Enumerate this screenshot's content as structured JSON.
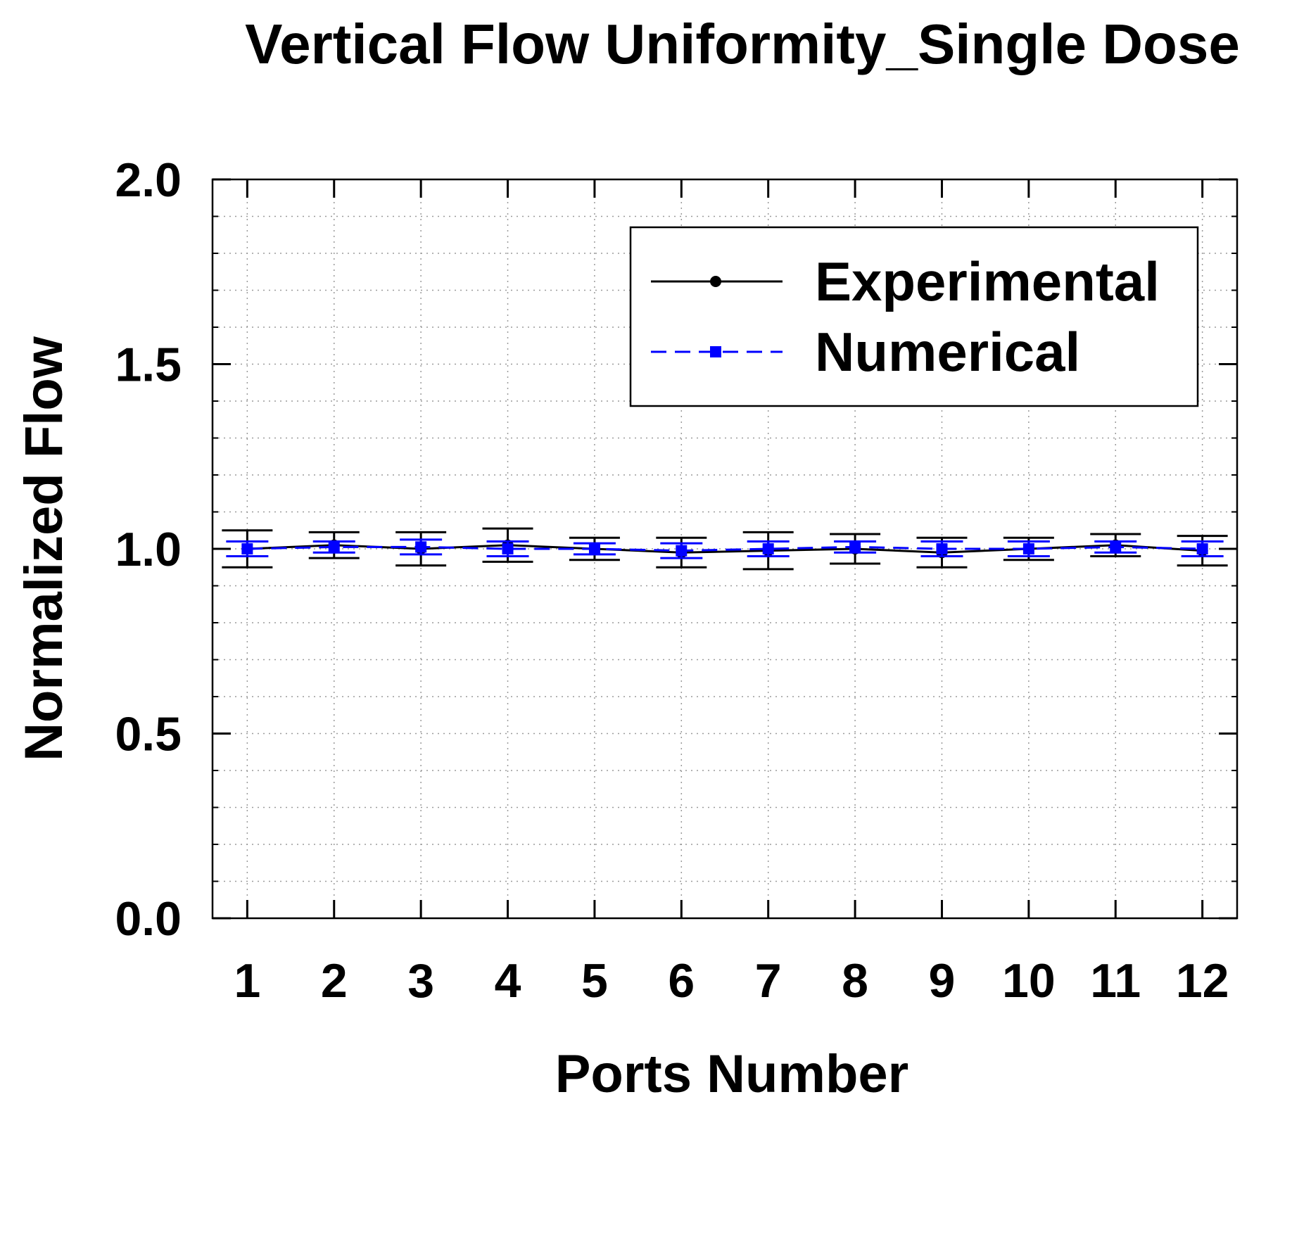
{
  "chart_data": {
    "type": "line",
    "title": "Vertical Flow Uniformity_Single Dose",
    "xlabel": "Ports Number",
    "ylabel": "Normalized Flow",
    "x": [
      1,
      2,
      3,
      4,
      5,
      6,
      7,
      8,
      9,
      10,
      11,
      12
    ],
    "x_tick_labels": [
      "1",
      "2",
      "3",
      "4",
      "5",
      "6",
      "7",
      "8",
      "9",
      "10",
      "11",
      "12"
    ],
    "xlim": [
      0.6,
      12.4
    ],
    "ylim": [
      0.0,
      2.0
    ],
    "y_ticks": [
      0.0,
      0.5,
      1.0,
      1.5,
      2.0
    ],
    "y_tick_labels": [
      "0.0",
      "0.5",
      "1.0",
      "1.5",
      "2.0"
    ],
    "grid": true,
    "legend_position": "top-right",
    "series": [
      {
        "name": "Experimental",
        "color": "#000000",
        "line_style": "solid",
        "marker": "circle",
        "values": [
          1.0,
          1.01,
          1.0,
          1.01,
          1.0,
          0.99,
          0.995,
          1.0,
          0.99,
          1.0,
          1.01,
          0.995
        ],
        "error": [
          0.05,
          0.035,
          0.045,
          0.045,
          0.03,
          0.04,
          0.05,
          0.04,
          0.04,
          0.03,
          0.03,
          0.04
        ]
      },
      {
        "name": "Numerical",
        "color": "#0000ff",
        "line_style": "dashed",
        "marker": "square",
        "values": [
          1.0,
          1.005,
          1.005,
          1.0,
          1.0,
          0.995,
          1.0,
          1.005,
          1.0,
          1.0,
          1.005,
          1.0
        ],
        "error": [
          0.02,
          0.015,
          0.02,
          0.02,
          0.015,
          0.02,
          0.02,
          0.015,
          0.02,
          0.02,
          0.015,
          0.02
        ]
      }
    ]
  }
}
